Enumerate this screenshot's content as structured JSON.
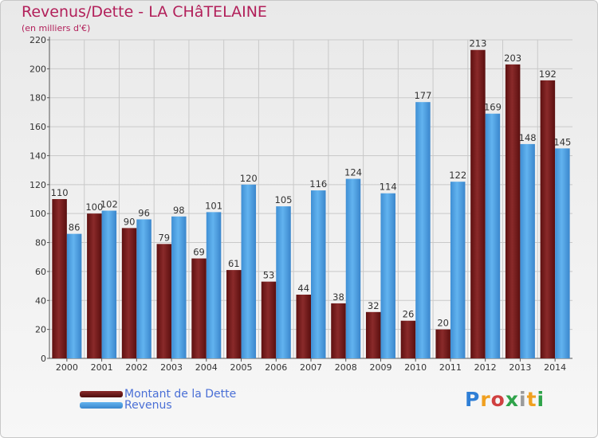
{
  "chart_data": {
    "type": "bar",
    "title": "Revenus/Dette - LA CHâTELAINE",
    "subtitle": "(en milliers d'€)",
    "xlabel": "",
    "ylabel": "",
    "ylim": [
      0,
      220
    ],
    "yticks": [
      0,
      20,
      40,
      60,
      80,
      100,
      120,
      140,
      160,
      180,
      200,
      220
    ],
    "grid": true,
    "legend_position": "bottom-left",
    "categories": [
      "2000",
      "2001",
      "2002",
      "2003",
      "2004",
      "2005",
      "2006",
      "2007",
      "2008",
      "2009",
      "2010",
      "2011",
      "2012",
      "2013",
      "2014"
    ],
    "series": [
      {
        "name": "Montant de la Dette",
        "color": "#7f1f1f",
        "values": [
          110,
          100,
          90,
          79,
          69,
          61,
          53,
          44,
          38,
          32,
          26,
          20,
          213,
          203,
          192
        ]
      },
      {
        "name": "Revenus",
        "color": "#4a9ee0",
        "values": [
          86,
          102,
          96,
          98,
          101,
          120,
          105,
          116,
          124,
          114,
          177,
          122,
          169,
          148,
          145
        ]
      }
    ]
  },
  "logo": {
    "text": "Proxiti",
    "colors": [
      "#2f7fd6",
      "#f0a020",
      "#d04040",
      "#2fa34a",
      "#9a9a9a",
      "#f0a020",
      "#2fa34a"
    ]
  }
}
